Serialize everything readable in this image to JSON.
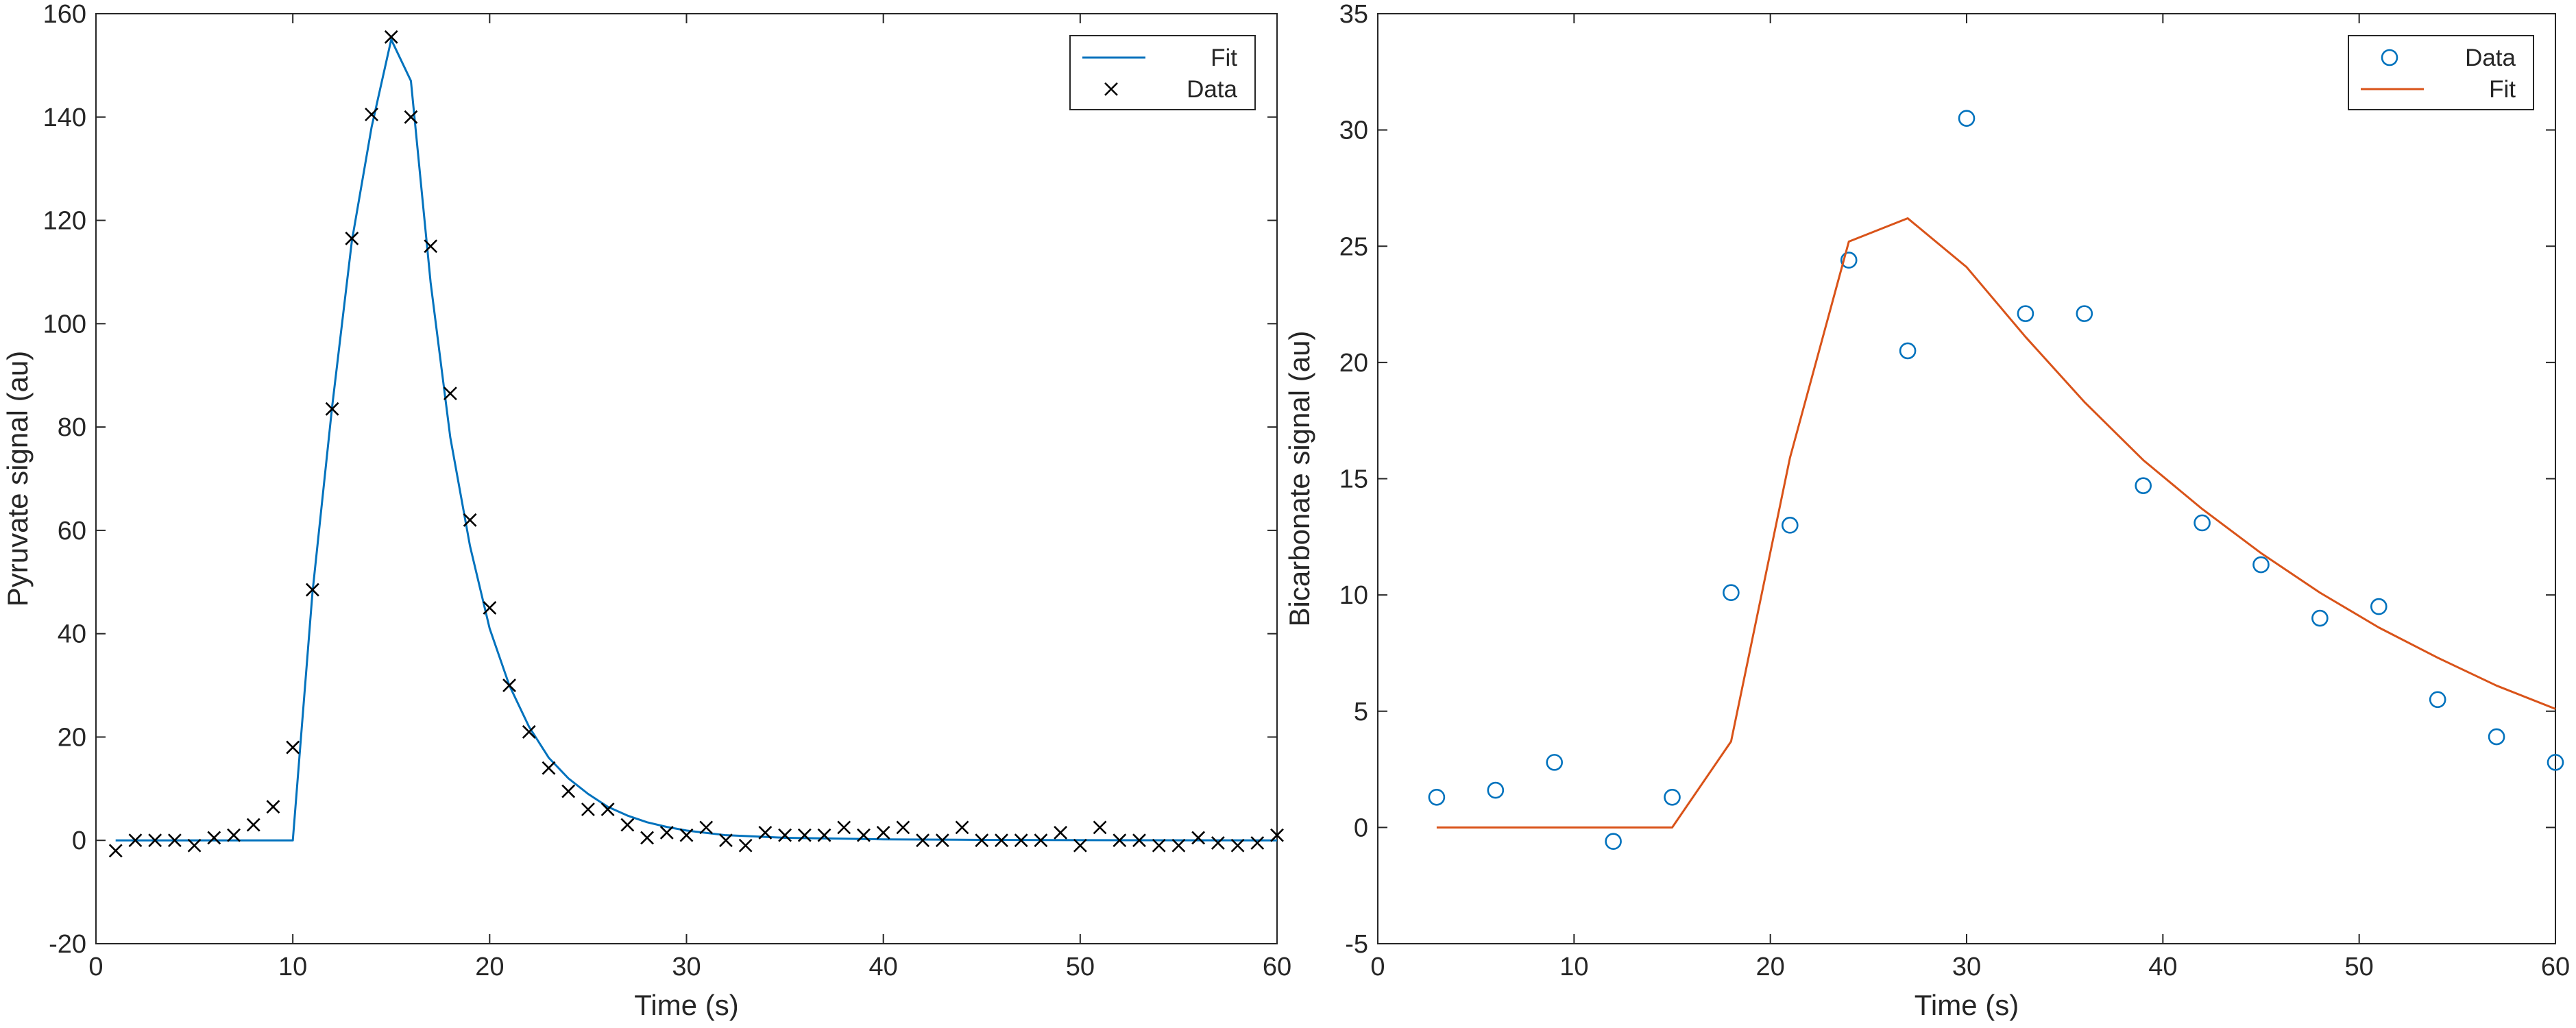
{
  "chart_data": [
    {
      "type": "line",
      "xlabel": "Time (s)",
      "ylabel": "Pyruvate signal (au)",
      "xlim": [
        0,
        60
      ],
      "ylim": [
        -20,
        160
      ],
      "xticks": [
        0,
        10,
        20,
        30,
        40,
        50,
        60
      ],
      "yticks": [
        -20,
        0,
        20,
        40,
        60,
        80,
        100,
        120,
        140,
        160
      ],
      "grid": false,
      "legend_position": "top-right",
      "legend": [
        "Fit",
        "Data"
      ],
      "series": [
        {
          "name": "Fit",
          "style": "line",
          "color": "#0072BD",
          "x": [
            1,
            10,
            11,
            12,
            13,
            14,
            15,
            16,
            17,
            18,
            19,
            20,
            21,
            22,
            23,
            24,
            25,
            26,
            27,
            28,
            29,
            30,
            32,
            35,
            40,
            45,
            50,
            55,
            60
          ],
          "y": [
            0,
            0,
            48,
            84,
            116,
            138,
            155,
            147,
            108,
            78,
            57,
            41,
            30,
            22,
            16,
            12,
            9,
            6.5,
            4.8,
            3.5,
            2.6,
            1.9,
            1.0,
            0.5,
            0.2,
            0.1,
            0.05,
            0.02,
            0
          ]
        },
        {
          "name": "Data",
          "style": "x-marker",
          "color": "#000000",
          "x": [
            1,
            2,
            3,
            4,
            5,
            6,
            7,
            8,
            9,
            10,
            11,
            12,
            13,
            14,
            15,
            16,
            17,
            18,
            19,
            20,
            21,
            22,
            23,
            24,
            25,
            26,
            27,
            28,
            29,
            30,
            31,
            32,
            33,
            34,
            35,
            36,
            37,
            38,
            39,
            40,
            41,
            42,
            43,
            44,
            45,
            46,
            47,
            48,
            49,
            50,
            51,
            52,
            53,
            54,
            55,
            56,
            57,
            58,
            59,
            60
          ],
          "y": [
            -2,
            0,
            0,
            0,
            -1,
            0.5,
            1,
            3,
            6.5,
            18,
            48.5,
            83.5,
            116.5,
            140.5,
            155.5,
            140,
            115,
            86.5,
            62,
            45,
            30,
            21,
            14,
            9.5,
            6,
            6,
            3,
            0.5,
            1.5,
            1,
            2.5,
            0,
            -1,
            1.5,
            1,
            1,
            1,
            2.5,
            1,
            1.5,
            2.5,
            0,
            0,
            2.5,
            0,
            0,
            0,
            0,
            1.5,
            -1,
            2.5,
            0,
            0,
            -1,
            -1,
            0.5,
            -0.5,
            -1,
            -0.5,
            1
          ]
        }
      ]
    },
    {
      "type": "scatter",
      "xlabel": "Time (s)",
      "ylabel": "Bicarbonate signal (au)",
      "xlim": [
        0,
        60
      ],
      "ylim": [
        -5,
        35
      ],
      "xticks": [
        0,
        10,
        20,
        30,
        40,
        50,
        60
      ],
      "yticks": [
        -5,
        0,
        5,
        10,
        15,
        20,
        25,
        30,
        35
      ],
      "grid": false,
      "legend_position": "top-right",
      "legend": [
        "Data",
        "Fit"
      ],
      "series": [
        {
          "name": "Data",
          "style": "o-marker",
          "color": "#0072BD",
          "x": [
            3,
            6,
            9,
            12,
            15,
            18,
            21,
            24,
            27,
            30,
            33,
            36,
            39,
            42,
            45,
            48,
            51,
            54,
            57,
            60
          ],
          "y": [
            1.3,
            1.6,
            2.8,
            -0.6,
            1.3,
            10.1,
            13,
            24.4,
            20.5,
            30.5,
            22.1,
            22.1,
            14.7,
            13.1,
            11.3,
            9,
            9.5,
            5.5,
            3.9,
            2.8
          ]
        },
        {
          "name": "Fit",
          "style": "line",
          "color": "#D95319",
          "x": [
            3,
            6,
            9,
            12,
            15,
            18,
            21,
            24,
            27,
            30,
            33,
            36,
            39,
            42,
            45,
            48,
            51,
            54,
            57,
            60
          ],
          "y": [
            0,
            0,
            0,
            0,
            0,
            3.7,
            15.9,
            25.2,
            26.2,
            24.1,
            21.1,
            18.3,
            15.8,
            13.7,
            11.8,
            10.1,
            8.6,
            7.3,
            6.1,
            5.1
          ]
        }
      ]
    }
  ]
}
